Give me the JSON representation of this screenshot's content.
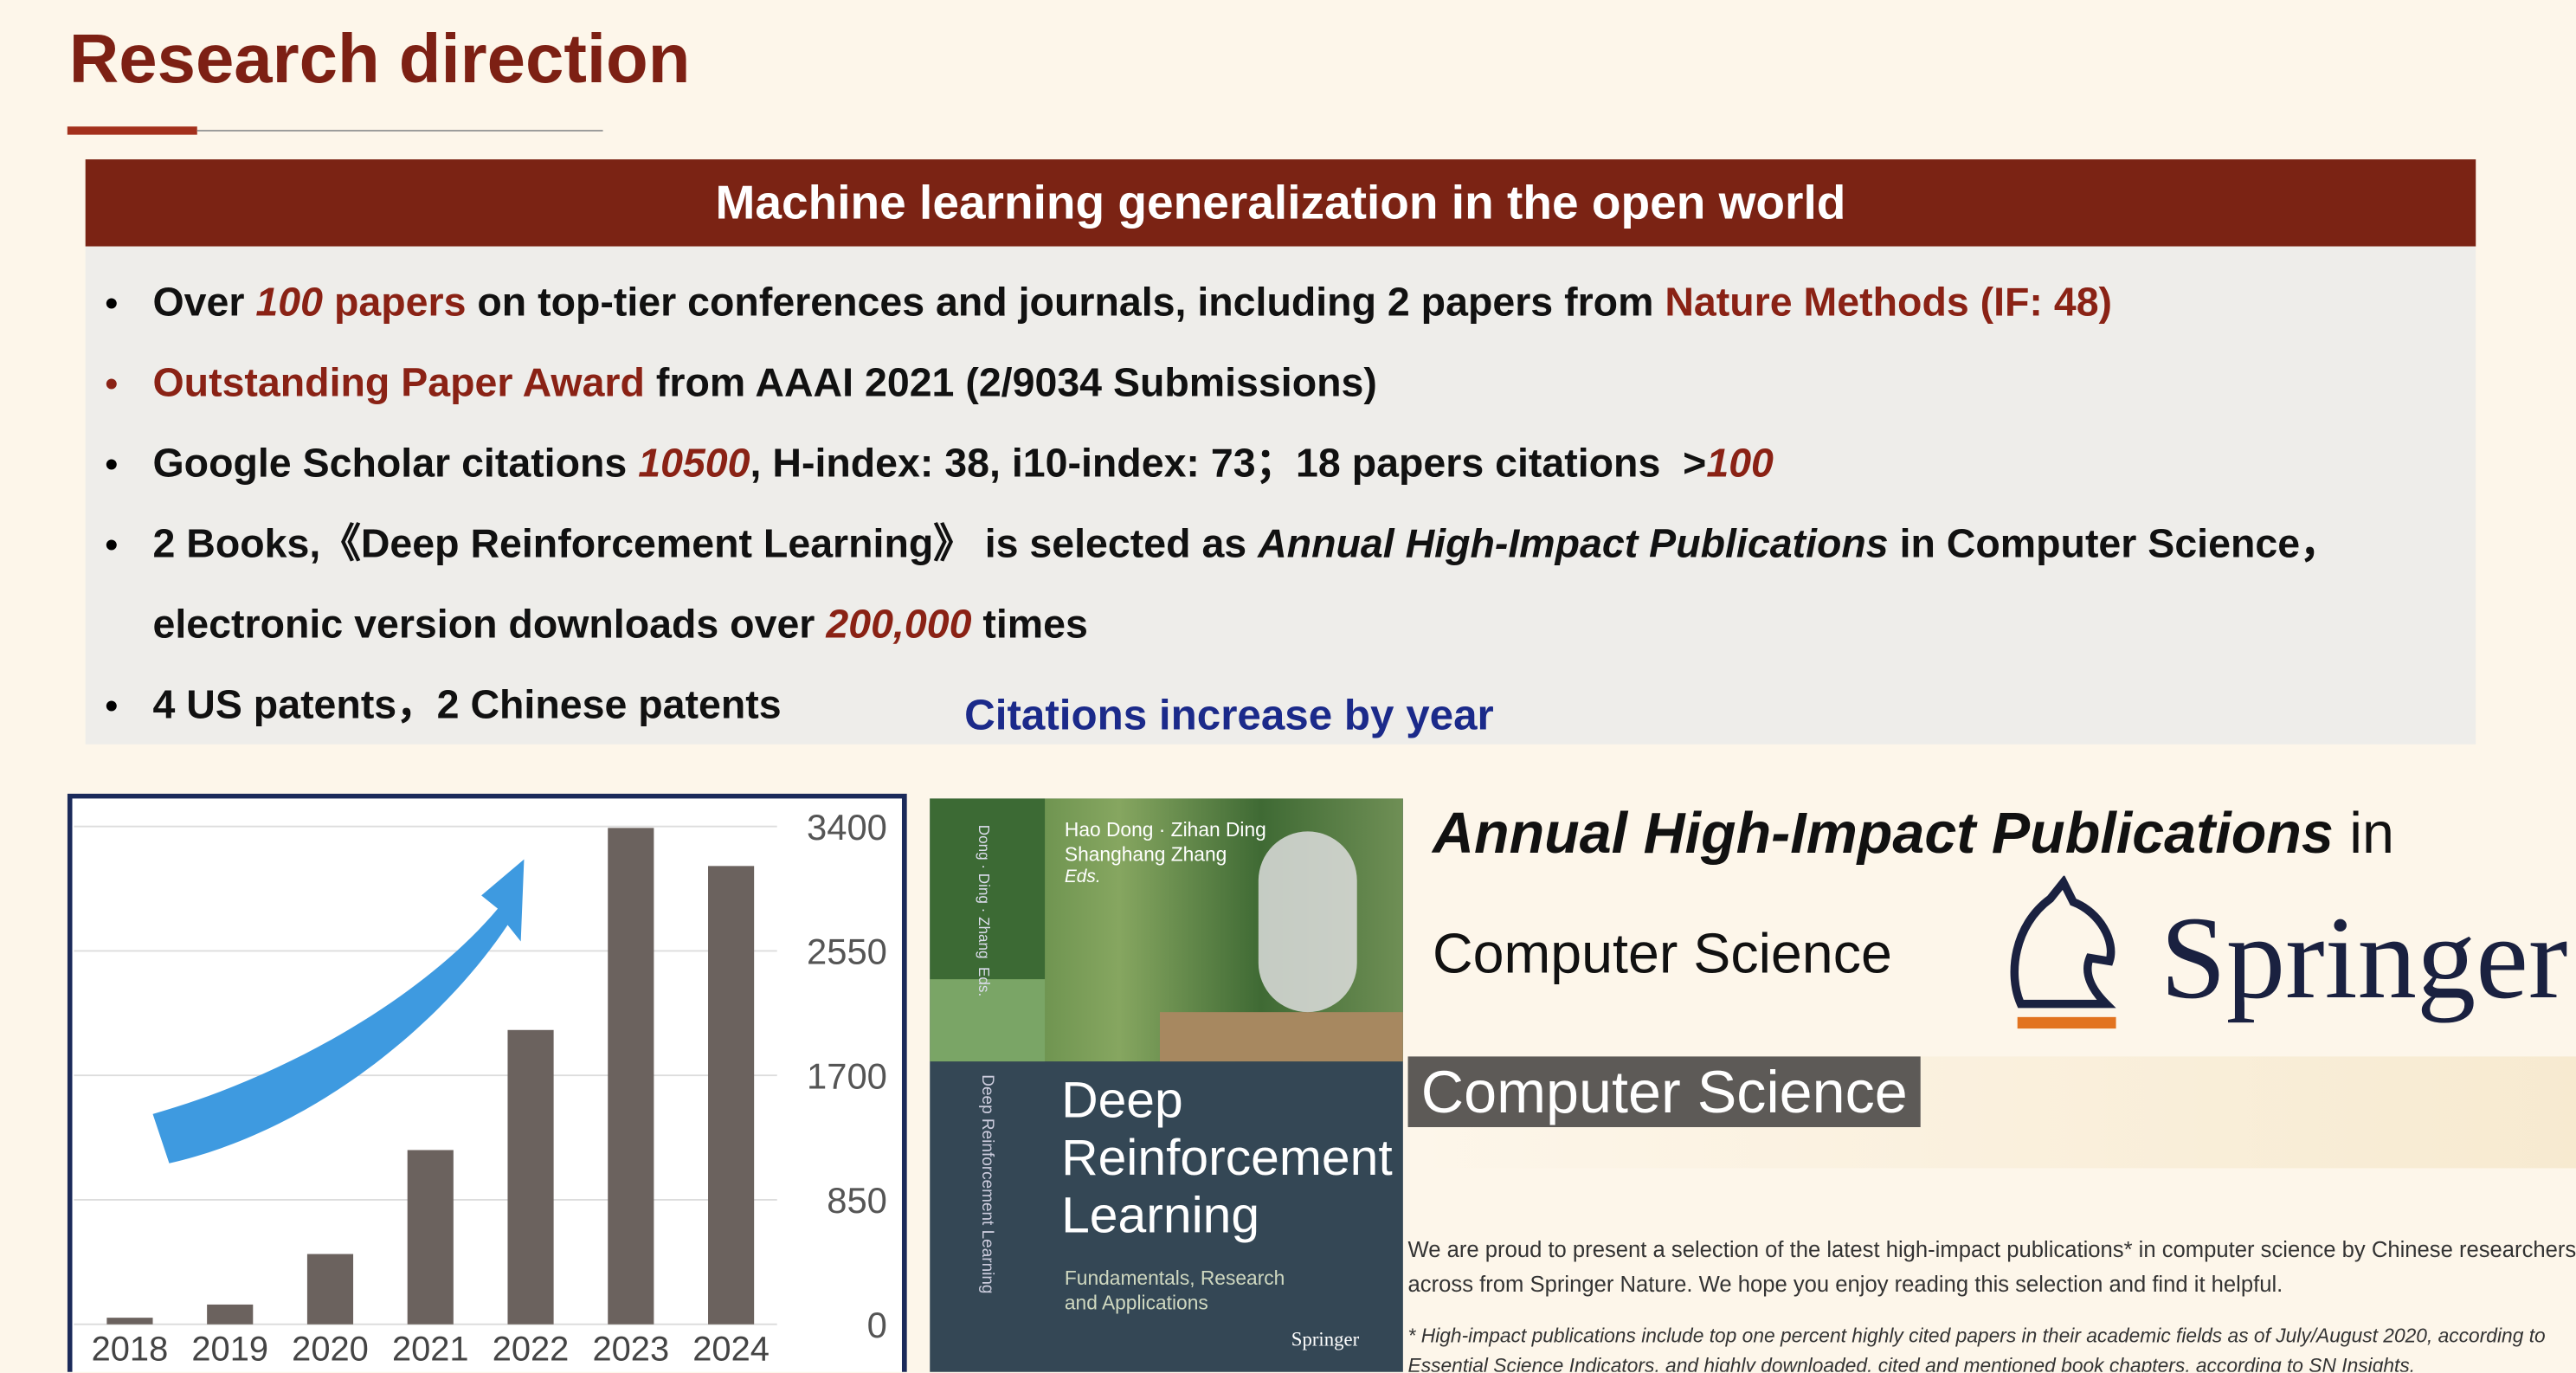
{
  "header": {
    "title": "Research direction"
  },
  "banner": {
    "title": "Machine learning generalization in the open world"
  },
  "bullets": [
    {
      "parts": [
        "Over ",
        "100",
        " papers",
        " on top-tier conferences and journals, including 2 papers from ",
        "Nature Methods (IF: 48)"
      ]
    },
    {
      "parts": [
        "Outstanding Paper Award",
        " from AAAI 2021 (2/9034 Submissions)"
      ]
    },
    {
      "parts": [
        "Google Scholar citations ",
        "10500",
        ", H-index: 38, i10-index: 73；18 papers citations  >",
        "100"
      ]
    },
    {
      "parts": [
        "2 Books,《Deep Reinforcement Learning》 is selected as ",
        "Annual High-Impact Publications",
        " in Computer Science，electronic version downloads over ",
        "200,000",
        " times"
      ]
    },
    {
      "parts": [
        "4 US patents，2 Chinese patents"
      ]
    }
  ],
  "chart_data": {
    "type": "bar",
    "title": "Citations increase by year",
    "categories": [
      "2018",
      "2019",
      "2020",
      "2021",
      "2022",
      "2023",
      "2024"
    ],
    "values": [
      45,
      135,
      480,
      1190,
      2010,
      3390,
      3130
    ],
    "color": "#6b625e",
    "ylim": [
      0,
      3400
    ],
    "yticks": [
      0,
      850,
      1700,
      2550,
      3400
    ],
    "grid": true
  },
  "book": {
    "authors": "Hao Dong · Zihan Ding",
    "authors2": "Shanghang Zhang",
    "eds": "Eds.",
    "spine_authors": "Dong · Ding · Zhang  Eds.",
    "spine_title": "Deep Reinforcement Learning",
    "title_lines": [
      "Deep",
      "Reinforcement",
      "Learning"
    ],
    "subtitle_lines": [
      "Fundamentals, Research",
      "and Applications"
    ],
    "publisher": "Springer"
  },
  "award": {
    "line1": [
      "Annual High-Impact Publications",
      " in"
    ],
    "line2": "Computer Science",
    "logo": "Springer",
    "banner": "Computer Science",
    "text": "We are proud to present a selection of the latest high-impact publications* in computer science by Chinese researchers across from Springer Nature.  We hope you enjoy reading this selection and find it helpful.",
    "note": "* High-impact publications include top one percent highly cited papers in their academic fields as of July/August 2020, according to Essential Science Indicators, and highly downloaded, cited and mentioned book chapters, according to SN Insights."
  }
}
